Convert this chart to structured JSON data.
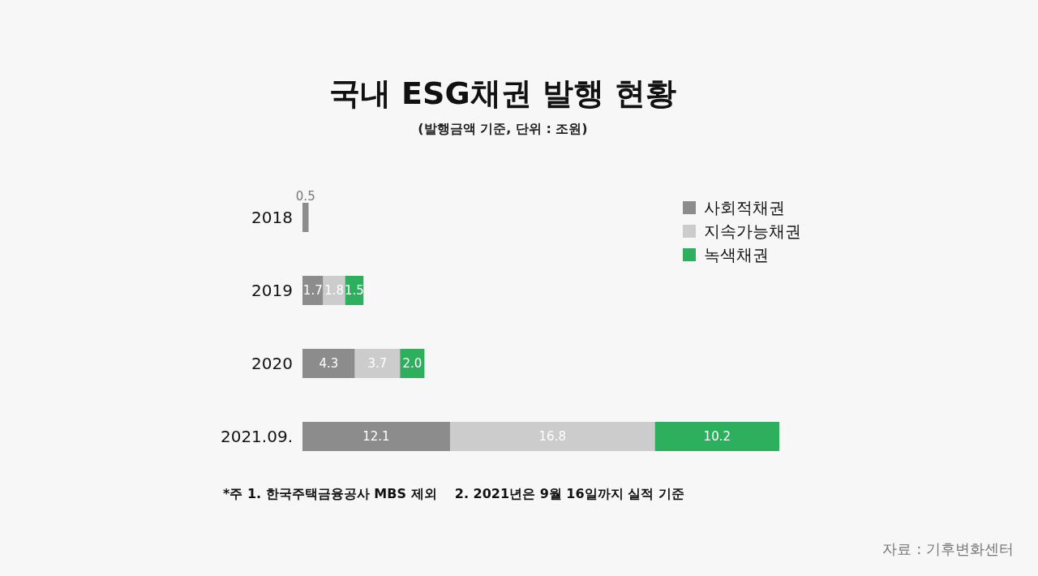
{
  "chart_data": {
    "type": "bar",
    "orientation": "horizontal",
    "stacked": true,
    "data_labels": true,
    "legend": "top right",
    "title": "국내 ESG채권 발행 현황",
    "subtitle": "(발행금액 기준, 단위 : 조원)",
    "categories": [
      "2018",
      "2019",
      "2020",
      "2021.09."
    ],
    "series": [
      {
        "name": "사회적채권",
        "color": "#8c8c8c",
        "values": [
          0.5,
          1.7,
          4.3,
          12.1
        ]
      },
      {
        "name": "지속가능채권",
        "color": "#cccccc",
        "values": [
          null,
          1.8,
          3.7,
          16.8
        ]
      },
      {
        "name": "녹색채권",
        "color": "#2eaf5e",
        "values": [
          null,
          1.5,
          2.0,
          10.2
        ],
        "value_labels": [
          null,
          "1.5",
          "2.0",
          "10.2"
        ]
      }
    ],
    "annotations": [
      "*주 1. 한국주택금융공사 MBS 제외    2. 2021년은 9월 16일까지 실적 기준",
      "자료 : 기후변화센터"
    ]
  }
}
